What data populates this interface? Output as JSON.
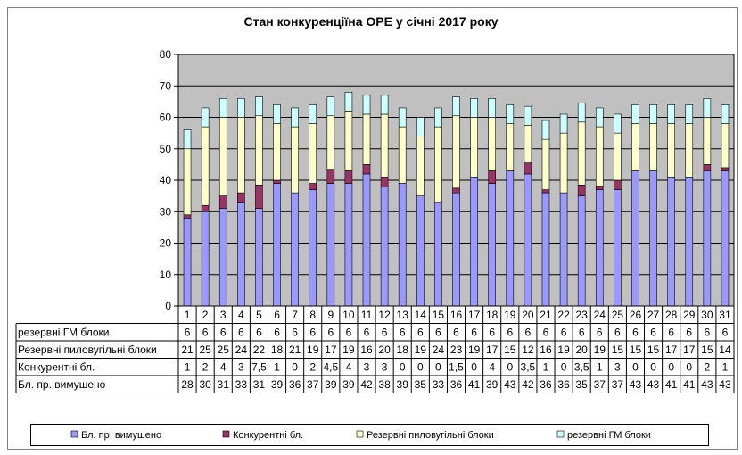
{
  "chart_data": {
    "type": "bar",
    "stacked": true,
    "title": "Стан конкуренціїна ОРЕ  у січні 2017 року",
    "categories": [
      "1",
      "2",
      "3",
      "4",
      "5",
      "6",
      "7",
      "8",
      "9",
      "10",
      "11",
      "12",
      "13",
      "14",
      "15",
      "16",
      "17",
      "18",
      "19",
      "20",
      "21",
      "22",
      "23",
      "24",
      "25",
      "26",
      "27",
      "28",
      "29",
      "30",
      "31"
    ],
    "ylim": [
      0,
      80
    ],
    "yticks": [
      "0",
      "10",
      "20",
      "30",
      "40",
      "50",
      "60",
      "70",
      "80"
    ],
    "grid": true,
    "legend_position": "bottom",
    "series": [
      {
        "name": "Бл. пр. вимушено",
        "color": "#9999ff",
        "values": [
          28,
          30,
          31,
          33,
          31,
          39,
          36,
          37,
          39,
          39,
          42,
          38,
          39,
          35,
          33,
          36,
          41,
          39,
          43,
          42,
          36,
          36,
          35,
          37,
          37,
          43,
          43,
          41,
          41,
          43,
          43
        ],
        "labels": [
          "28",
          "30",
          "31",
          "33",
          "31",
          "39",
          "36",
          "37",
          "39",
          "39",
          "42",
          "38",
          "39",
          "35",
          "33",
          "36",
          "41",
          "39",
          "43",
          "42",
          "36",
          "36",
          "35",
          "37",
          "37",
          "43",
          "43",
          "41",
          "41",
          "43",
          "43"
        ]
      },
      {
        "name": "Конкурентні бл.",
        "color": "#993366",
        "values": [
          1,
          2,
          4,
          3,
          7.5,
          1,
          0,
          2,
          4.5,
          4,
          3,
          3,
          0,
          0,
          0,
          1.5,
          0,
          4,
          0,
          3.5,
          1,
          0,
          3.5,
          1,
          3,
          0,
          0,
          0,
          0,
          2,
          1
        ],
        "labels": [
          "1",
          "2",
          "4",
          "3",
          "7,5",
          "1",
          "0",
          "2",
          "4,5",
          "4",
          "3",
          "3",
          "0",
          "0",
          "0",
          "1,5",
          "0",
          "4",
          "0",
          "3,5",
          "1",
          "0",
          "3,5",
          "1",
          "3",
          "0",
          "0",
          "0",
          "0",
          "2",
          "1"
        ]
      },
      {
        "name": "Резервні пиловугільні блоки",
        "color": "#ffffcc",
        "values": [
          21,
          25,
          25,
          24,
          22,
          18,
          21,
          19,
          17,
          19,
          16,
          20,
          18,
          19,
          24,
          23,
          19,
          17,
          15,
          12,
          16,
          19,
          20,
          19,
          15,
          15,
          15,
          17,
          17,
          15,
          14
        ],
        "labels": [
          "21",
          "25",
          "25",
          "24",
          "22",
          "18",
          "21",
          "19",
          "17",
          "19",
          "16",
          "20",
          "18",
          "19",
          "24",
          "23",
          "19",
          "17",
          "15",
          "12",
          "16",
          "19",
          "20",
          "19",
          "15",
          "15",
          "15",
          "17",
          "17",
          "15",
          "14"
        ]
      },
      {
        "name": "резервні ГМ блоки",
        "color": "#ccffff",
        "values": [
          6,
          6,
          6,
          6,
          6,
          6,
          6,
          6,
          6,
          6,
          6,
          6,
          6,
          6,
          6,
          6,
          6,
          6,
          6,
          6,
          6,
          6,
          6,
          6,
          6,
          6,
          6,
          6,
          6,
          6,
          6
        ],
        "labels": [
          "6",
          "6",
          "6",
          "6",
          "6",
          "6",
          "6",
          "6",
          "6",
          "6",
          "6",
          "6",
          "6",
          "6",
          "6",
          "6",
          "6",
          "6",
          "6",
          "6",
          "6",
          "6",
          "6",
          "6",
          "6",
          "6",
          "6",
          "6",
          "6",
          "6",
          "6"
        ]
      }
    ],
    "table_row_order": [
      3,
      2,
      1,
      0
    ],
    "table_row_labels": [
      "резервні ГМ блоки",
      "Резервні пиловугільні блоки",
      "Конкурентні бл.",
      "Бл. пр. вимушено"
    ],
    "legend": [
      "Бл. пр. вимушено",
      "Конкурентні бл.",
      "Резервні пиловугільні  блоки",
      "резервні ГМ блоки"
    ]
  },
  "colors": {
    "plot_bg": "#c0c0c0",
    "border": "#000000",
    "grid": "#000000"
  }
}
